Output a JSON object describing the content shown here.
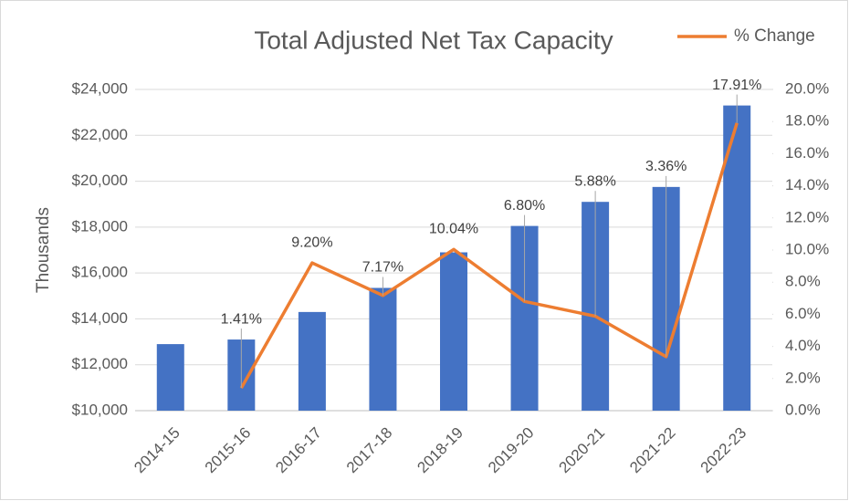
{
  "chart_data": {
    "type": "bar_line",
    "title": "Total Adjusted Net Tax Capacity",
    "ylabel": "Thousands",
    "categories": [
      "2014-15",
      "2015-16",
      "2016-17",
      "2017-18",
      "2018-19",
      "2019-20",
      "2020-21",
      "2021-22",
      "2022-23"
    ],
    "series": [
      {
        "type": "bar",
        "color": "#4472c4",
        "values": [
          12900,
          13100,
          14300,
          15350,
          16900,
          18050,
          19100,
          19750,
          23300
        ]
      },
      {
        "type": "line",
        "name": "% Change",
        "color": "#ed7d31",
        "axis": "y2",
        "values": [
          null,
          1.41,
          9.2,
          7.17,
          10.04,
          6.8,
          5.88,
          3.36,
          17.91
        ],
        "value_labels": [
          null,
          "1.41%",
          "9.20%",
          "7.17%",
          "10.04%",
          "6.80%",
          "5.88%",
          "3.36%",
          "17.91%"
        ]
      }
    ],
    "ylim": [
      10000,
      24000
    ],
    "yticks": [
      {
        "value": 10000,
        "label": "$10,000"
      },
      {
        "value": 12000,
        "label": "$12,000"
      },
      {
        "value": 14000,
        "label": "$14,000"
      },
      {
        "value": 16000,
        "label": "$16,000"
      },
      {
        "value": 18000,
        "label": "$18,000"
      },
      {
        "value": 20000,
        "label": "$20,000"
      },
      {
        "value": 22000,
        "label": "$22,000"
      },
      {
        "value": 24000,
        "label": "$24,000"
      }
    ],
    "y2lim": [
      0,
      20
    ],
    "y2ticks": [
      {
        "value": 0,
        "label": "0.0%"
      },
      {
        "value": 2,
        "label": "2.0%"
      },
      {
        "value": 4,
        "label": "4.0%"
      },
      {
        "value": 6,
        "label": "6.0%"
      },
      {
        "value": 8,
        "label": "8.0%"
      },
      {
        "value": 10,
        "label": "10.0%"
      },
      {
        "value": 12,
        "label": "12.0%"
      },
      {
        "value": 14,
        "label": "14.0%"
      },
      {
        "value": 16,
        "label": "16.0%"
      },
      {
        "value": 18,
        "label": "18.0%"
      },
      {
        "value": 20,
        "label": "20.0%"
      }
    ],
    "grid": true,
    "legend": "top-right"
  }
}
